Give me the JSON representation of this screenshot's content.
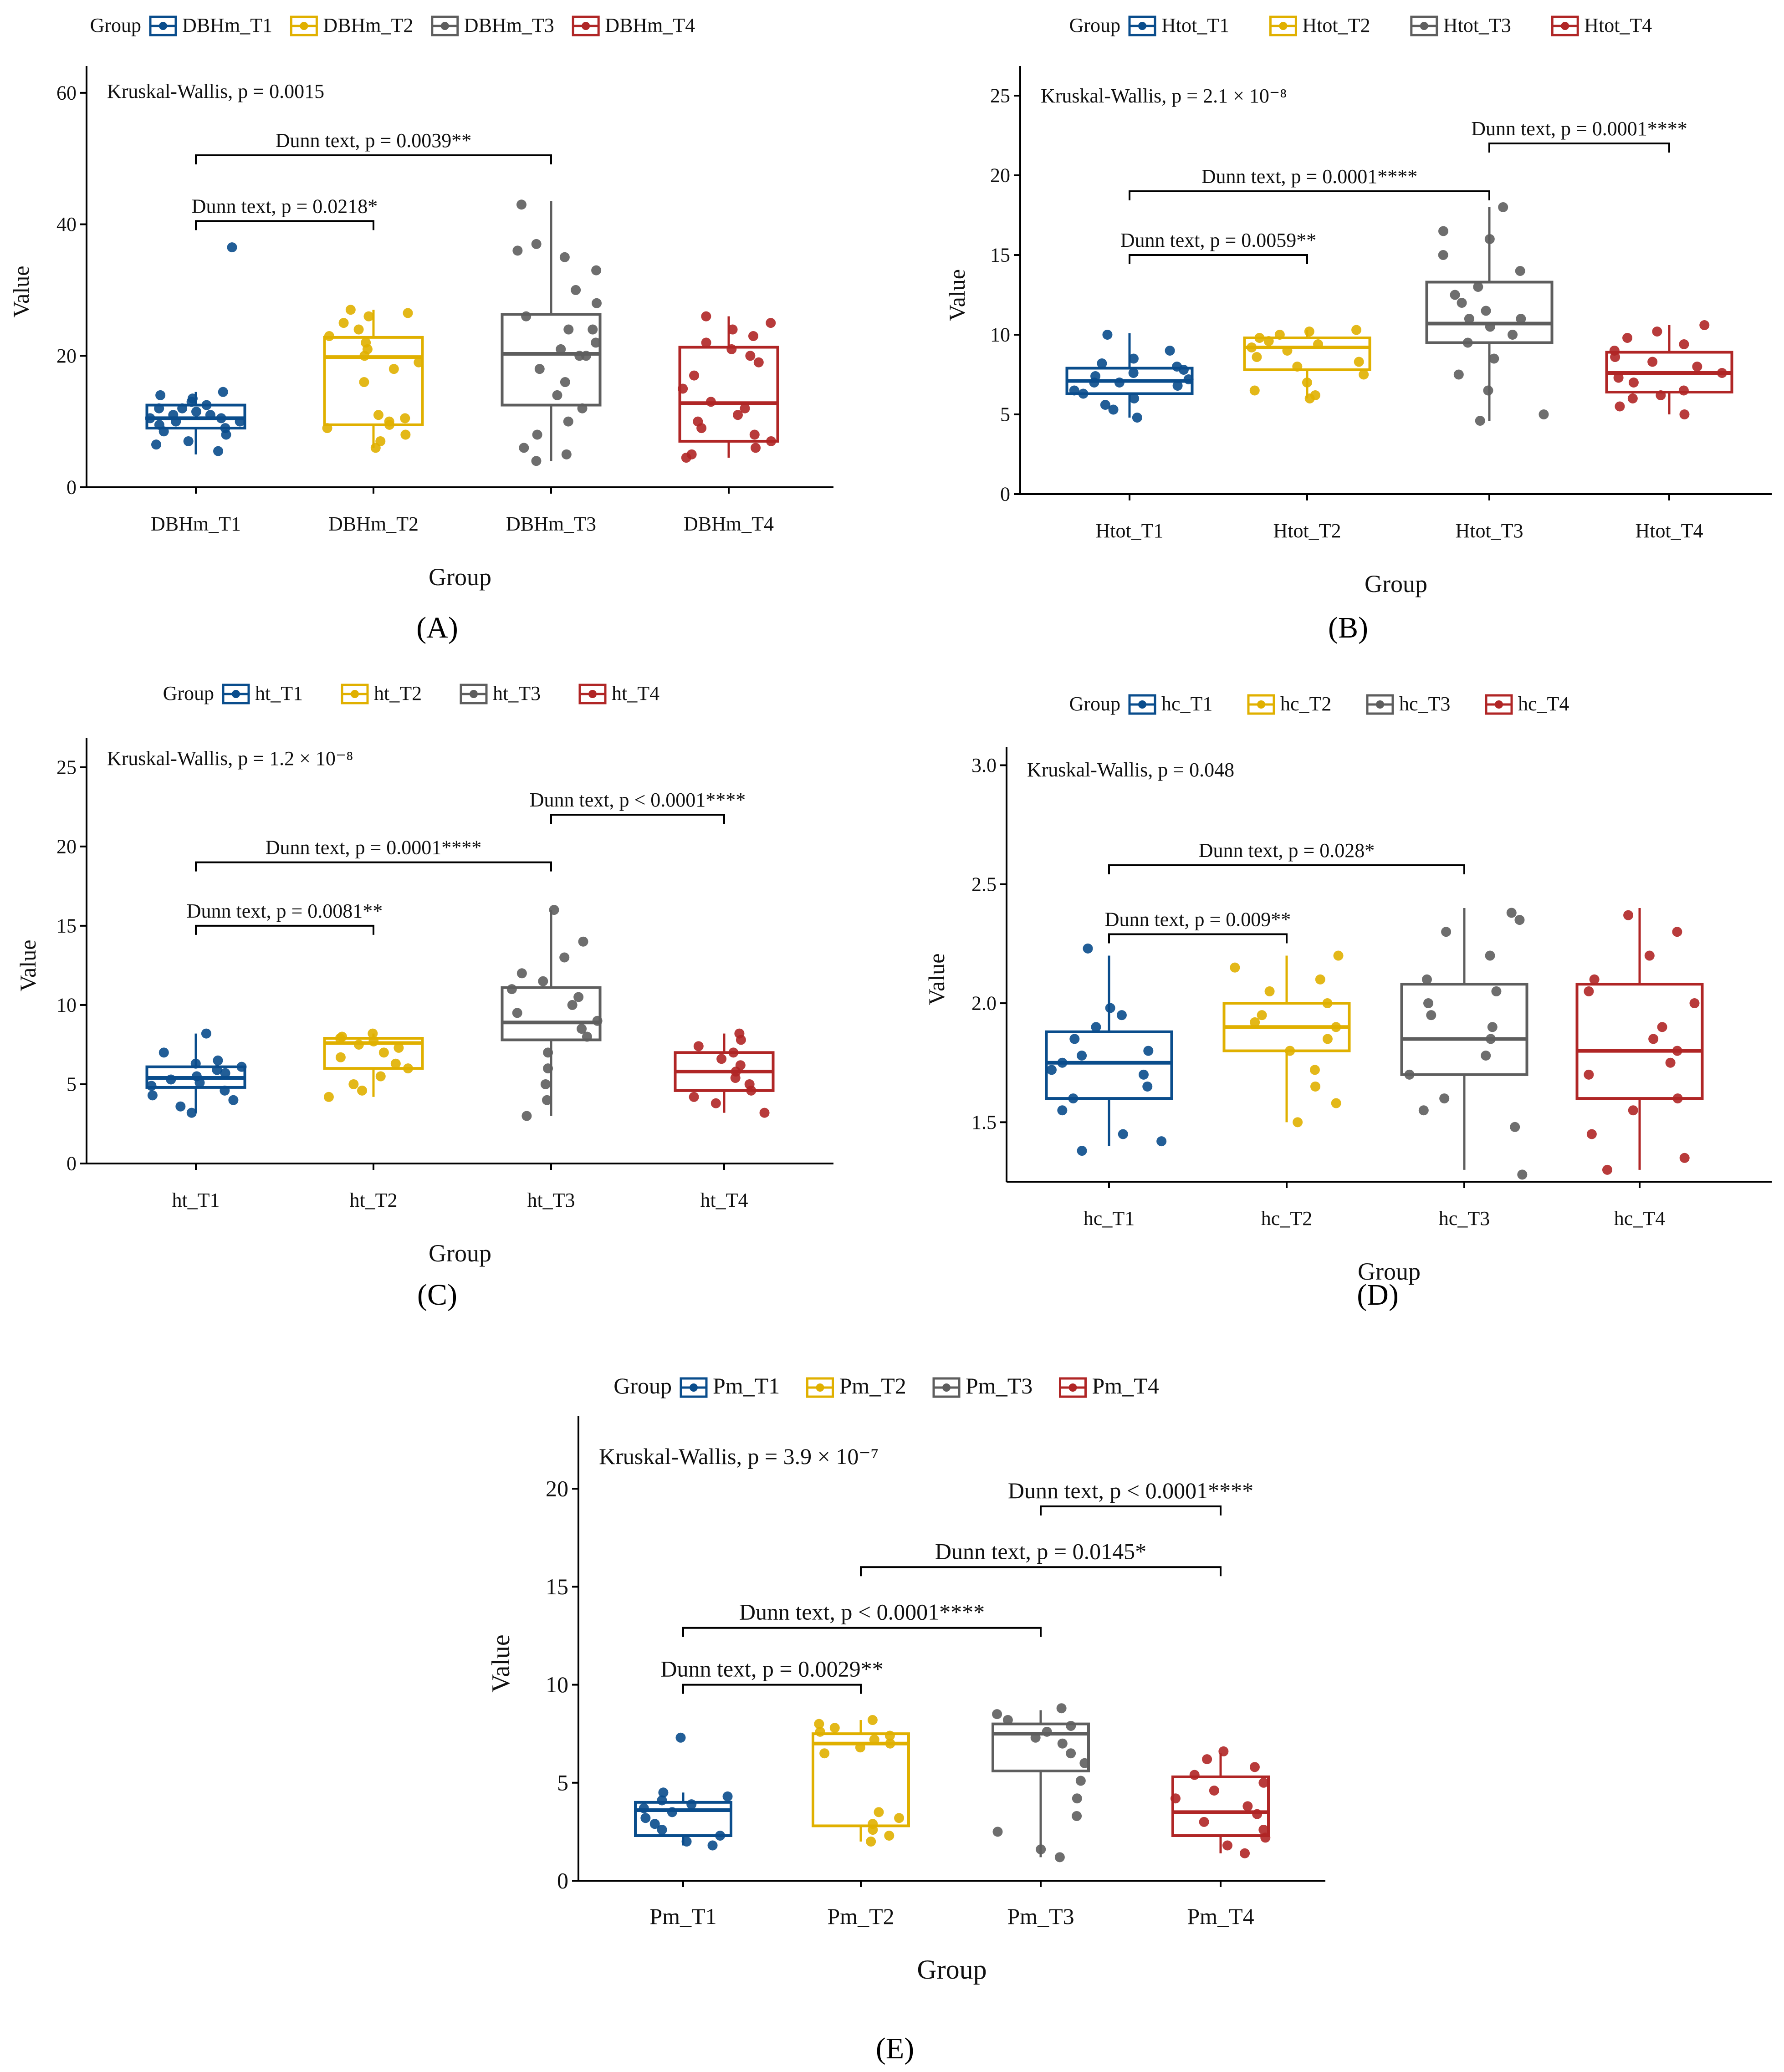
{
  "figure": {
    "panels": [
      {
        "id": "A",
        "label": "A",
        "label_text": "(A)"
      },
      {
        "id": "B",
        "label": "B",
        "label_text": "(B)"
      },
      {
        "id": "C",
        "label": "C",
        "label_text": "(C)"
      },
      {
        "id": "D",
        "label": "D",
        "label_text": "(D)"
      },
      {
        "id": "E",
        "label": "E",
        "label_text": "(E)"
      }
    ]
  },
  "colors": {
    "T1": "#0a4d8c",
    "T2": "#e0b000",
    "T3": "#5e5e5e",
    "T4": "#b02626",
    "axis": "#000000",
    "text": "#111111"
  },
  "chart_data": [
    {
      "panel": "A",
      "type": "boxplot",
      "legend_title": "Group",
      "categories": [
        "DBHm_T1",
        "DBHm_T2",
        "DBHm_T3",
        "DBHm_T4"
      ],
      "xlabel": "Group",
      "ylabel": "Value",
      "ylim": [
        0,
        62
      ],
      "yticks": [
        0,
        20,
        40,
        60
      ],
      "test_label": "Kruskal-Wallis, p = 0.0015",
      "boxes": [
        {
          "min": 5,
          "q1": 9,
          "median": 10.5,
          "q3": 12.5,
          "max": 14.5,
          "points": [
            5.5,
            6.5,
            7,
            8,
            8.5,
            9,
            9.5,
            10,
            10,
            10.5,
            10.5,
            11,
            11,
            11.5,
            12,
            12,
            12.5,
            13,
            13.5,
            14,
            14.5,
            36.5
          ]
        },
        {
          "min": 6,
          "q1": 9.5,
          "median": 19.8,
          "q3": 22.8,
          "max": 27,
          "points": [
            6,
            7,
            8,
            9,
            9.5,
            10,
            10.5,
            11,
            16,
            18,
            19,
            20,
            21,
            22,
            23,
            24,
            25,
            26,
            26.5,
            27
          ]
        },
        {
          "min": 4,
          "q1": 12.5,
          "median": 20.3,
          "q3": 26.3,
          "max": 43.5,
          "points": [
            4,
            5,
            6,
            8,
            10,
            12,
            14,
            16,
            18,
            20,
            20,
            21,
            22,
            24,
            24,
            26,
            28,
            30,
            33,
            35,
            36,
            37,
            43
          ]
        },
        {
          "min": 4.5,
          "q1": 7,
          "median": 12.8,
          "q3": 21.3,
          "max": 26,
          "points": [
            4.5,
            5,
            6,
            7,
            8,
            9,
            10,
            11,
            12,
            13,
            15,
            17,
            19,
            20,
            21,
            22,
            23,
            24,
            25,
            26
          ]
        }
      ],
      "comparisons": [
        {
          "from": 0,
          "to": 2,
          "y": 50.5,
          "text": "Dunn text, p = 0.0039**"
        },
        {
          "from": 0,
          "to": 1,
          "y": 40.5,
          "text": "Dunn text, p = 0.0218*"
        }
      ]
    },
    {
      "panel": "B",
      "type": "boxplot",
      "legend_title": "Group",
      "categories": [
        "Htot_T1",
        "Htot_T2",
        "Htot_T3",
        "Htot_T4"
      ],
      "xlabel": "Group",
      "ylabel": "Value",
      "ylim": [
        0,
        26
      ],
      "yticks": [
        0,
        5,
        10,
        15,
        20,
        25
      ],
      "test_label": "Kruskal-Wallis, p = 2.1 × 10⁻⁸",
      "boxes": [
        {
          "min": 4.8,
          "q1": 6.3,
          "median": 7.1,
          "q3": 7.9,
          "max": 10.1,
          "points": [
            4.8,
            5.3,
            5.6,
            6,
            6.3,
            6.5,
            6.8,
            7,
            7,
            7.2,
            7.4,
            7.6,
            7.8,
            8,
            8.2,
            8.5,
            9,
            10
          ]
        },
        {
          "min": 6,
          "q1": 7.8,
          "median": 9.2,
          "q3": 9.8,
          "max": 10.3,
          "points": [
            6,
            6.2,
            6.5,
            7,
            7.5,
            8,
            8.3,
            8.6,
            9,
            9.2,
            9.4,
            9.6,
            9.8,
            10,
            10.2,
            10.3
          ]
        },
        {
          "min": 4.6,
          "q1": 9.5,
          "median": 10.7,
          "q3": 13.3,
          "max": 18,
          "points": [
            4.6,
            5,
            6.5,
            7.5,
            8.5,
            9.5,
            10,
            10.5,
            11,
            11,
            11.5,
            12,
            12.5,
            13,
            14,
            15,
            16,
            16.5,
            18
          ]
        },
        {
          "min": 5,
          "q1": 6.4,
          "median": 7.6,
          "q3": 8.9,
          "max": 10.6,
          "points": [
            5,
            5.5,
            6,
            6.2,
            6.5,
            7,
            7.3,
            7.6,
            8,
            8.3,
            8.6,
            9,
            9.4,
            9.8,
            10.2,
            10.6
          ]
        }
      ],
      "comparisons": [
        {
          "from": 0,
          "to": 2,
          "y": 19,
          "text": "Dunn text, p = 0.0001****"
        },
        {
          "from": 2,
          "to": 3,
          "y": 22,
          "text": "Dunn text, p = 0.0001****"
        },
        {
          "from": 0,
          "to": 1,
          "y": 15,
          "text": "Dunn text, p = 0.0059**"
        }
      ]
    },
    {
      "panel": "C",
      "type": "boxplot",
      "legend_title": "Group",
      "categories": [
        "ht_T1",
        "ht_T2",
        "ht_T3",
        "ht_T4"
      ],
      "xlabel": "Group",
      "ylabel": "Value",
      "ylim": [
        0,
        26
      ],
      "yticks": [
        0,
        5,
        10,
        15,
        20,
        25
      ],
      "test_label": "Kruskal-Wallis, p = 1.2 × 10⁻⁸",
      "boxes": [
        {
          "min": 3.2,
          "q1": 4.8,
          "median": 5.4,
          "q3": 6.1,
          "max": 8.2,
          "points": [
            3.2,
            3.6,
            4,
            4.3,
            4.6,
            4.9,
            5.1,
            5.3,
            5.5,
            5.7,
            5.9,
            6.1,
            6.3,
            6.5,
            7,
            8.2
          ]
        },
        {
          "min": 4.2,
          "q1": 6,
          "median": 7.6,
          "q3": 7.9,
          "max": 8.2,
          "points": [
            4.2,
            4.6,
            5,
            5.5,
            6,
            6.3,
            6.7,
            7,
            7.3,
            7.5,
            7.7,
            7.9,
            8,
            8.2
          ]
        },
        {
          "min": 3,
          "q1": 7.8,
          "median": 8.9,
          "q3": 11.1,
          "max": 16,
          "points": [
            3,
            4,
            5,
            6,
            7,
            8,
            8.5,
            9,
            9.5,
            10,
            10.5,
            11,
            11.5,
            12,
            13,
            14,
            16
          ]
        },
        {
          "min": 3.2,
          "q1": 4.6,
          "median": 5.8,
          "q3": 7,
          "max": 8.2,
          "points": [
            3.2,
            3.8,
            4.2,
            4.6,
            5,
            5.4,
            5.8,
            6.2,
            6.6,
            7,
            7.4,
            7.8,
            8.2
          ]
        }
      ],
      "comparisons": [
        {
          "from": 0,
          "to": 2,
          "y": 19,
          "text": "Dunn text, p = 0.0001****"
        },
        {
          "from": 2,
          "to": 3,
          "y": 22,
          "text": "Dunn text, p < 0.0001****"
        },
        {
          "from": 0,
          "to": 1,
          "y": 15,
          "text": "Dunn text, p = 0.0081**"
        }
      ]
    },
    {
      "panel": "D",
      "type": "boxplot",
      "legend_title": "Group",
      "categories": [
        "hc_T1",
        "hc_T2",
        "hc_T3",
        "hc_T4"
      ],
      "xlabel": "Group",
      "ylabel": "Value",
      "ylim": [
        1.25,
        3.02
      ],
      "yticks": [
        1.5,
        2.0,
        2.5,
        3.0
      ],
      "ytick_labels": [
        "1.5",
        "2.0",
        "2.5",
        "3.0"
      ],
      "test_label": "Kruskal-Wallis, p = 0.048",
      "boxes": [
        {
          "min": 1.4,
          "q1": 1.6,
          "median": 1.75,
          "q3": 1.88,
          "max": 2.2,
          "points": [
            1.38,
            1.42,
            1.45,
            1.55,
            1.6,
            1.65,
            1.7,
            1.72,
            1.75,
            1.78,
            1.8,
            1.85,
            1.9,
            1.95,
            1.98,
            2.23
          ]
        },
        {
          "min": 1.5,
          "q1": 1.8,
          "median": 1.9,
          "q3": 2.0,
          "max": 2.2,
          "points": [
            1.5,
            1.58,
            1.65,
            1.72,
            1.8,
            1.85,
            1.9,
            1.92,
            1.95,
            2.0,
            2.05,
            2.1,
            2.15,
            2.2
          ]
        },
        {
          "min": 1.3,
          "q1": 1.7,
          "median": 1.85,
          "q3": 2.08,
          "max": 2.4,
          "points": [
            1.28,
            1.48,
            1.55,
            1.6,
            1.7,
            1.78,
            1.85,
            1.9,
            1.95,
            2.0,
            2.05,
            2.1,
            2.2,
            2.3,
            2.35,
            2.38
          ]
        },
        {
          "min": 1.3,
          "q1": 1.6,
          "median": 1.8,
          "q3": 2.08,
          "max": 2.4,
          "points": [
            1.3,
            1.35,
            1.45,
            1.55,
            1.6,
            1.7,
            1.75,
            1.8,
            1.85,
            1.9,
            2.0,
            2.05,
            2.1,
            2.2,
            2.3,
            2.37
          ]
        }
      ],
      "comparisons": [
        {
          "from": 0,
          "to": 2,
          "y": 2.58,
          "text": "Dunn text, p = 0.028*"
        },
        {
          "from": 0,
          "to": 1,
          "y": 2.29,
          "text": "Dunn text, p = 0.009**"
        }
      ]
    },
    {
      "panel": "E",
      "type": "boxplot",
      "legend_title": "Group",
      "categories": [
        "Pm_T1",
        "Pm_T2",
        "Pm_T3",
        "Pm_T4"
      ],
      "xlabel": "Group",
      "ylabel": "Value",
      "ylim": [
        0,
        23
      ],
      "yticks": [
        0,
        5,
        10,
        15,
        20
      ],
      "test_label": "Kruskal-Wallis, p = 3.9 × 10⁻⁷",
      "boxes": [
        {
          "min": 1.8,
          "q1": 2.3,
          "median": 3.6,
          "q3": 4.0,
          "max": 4.5,
          "points": [
            1.8,
            2.0,
            2.3,
            2.6,
            2.9,
            3.2,
            3.5,
            3.7,
            3.9,
            4.1,
            4.3,
            4.5,
            7.3
          ]
        },
        {
          "min": 2,
          "q1": 2.8,
          "median": 7.0,
          "q3": 7.5,
          "max": 8.2,
          "points": [
            2,
            2.3,
            2.6,
            2.9,
            3.2,
            3.5,
            6.5,
            6.8,
            7,
            7.2,
            7.4,
            7.6,
            7.8,
            8,
            8.2
          ]
        },
        {
          "min": 1.2,
          "q1": 5.6,
          "median": 7.5,
          "q3": 8.0,
          "max": 8.7,
          "points": [
            1.2,
            1.6,
            2.5,
            3.3,
            4.2,
            5.1,
            6,
            6.5,
            7,
            7.3,
            7.6,
            7.9,
            8.2,
            8.5,
            8.8
          ]
        },
        {
          "min": 1.4,
          "q1": 2.3,
          "median": 3.5,
          "q3": 5.3,
          "max": 6.5,
          "points": [
            1.4,
            1.8,
            2.2,
            2.6,
            3,
            3.4,
            3.8,
            4.2,
            4.6,
            5,
            5.4,
            5.8,
            6.2,
            6.6
          ]
        }
      ],
      "comparisons": [
        {
          "from": 2,
          "to": 3,
          "y": 19.1,
          "text": "Dunn text, p < 0.0001****"
        },
        {
          "from": 1,
          "to": 3,
          "y": 16.0,
          "text": "Dunn text, p = 0.0145*"
        },
        {
          "from": 0,
          "to": 2,
          "y": 12.9,
          "text": "Dunn text, p < 0.0001****"
        },
        {
          "from": 0,
          "to": 1,
          "y": 10.0,
          "text": "Dunn text, p = 0.0029**"
        }
      ]
    }
  ]
}
